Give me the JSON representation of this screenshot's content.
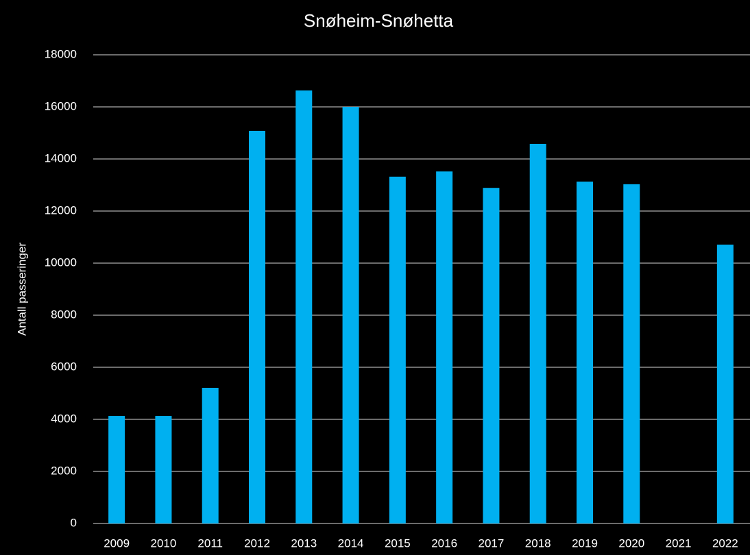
{
  "chart_data": {
    "type": "bar",
    "title": "Snøheim-Snøhetta",
    "y_label": "Antall passeringer",
    "categories": [
      "2009",
      "2010",
      "2011",
      "2012",
      "2013",
      "2014",
      "2015",
      "2016",
      "2017",
      "2018",
      "2019",
      "2020",
      "2021",
      "2022"
    ],
    "values": [
      4130,
      4130,
      5210,
      15080,
      16630,
      16000,
      13320,
      13520,
      12890,
      14580,
      13130,
      13030,
      null,
      10710
    ],
    "color": "#00b0f0",
    "ylim": [
      0,
      18000
    ],
    "yticks": [
      0,
      2000,
      4000,
      6000,
      8000,
      10000,
      12000,
      14000,
      16000,
      18000
    ],
    "grid": true
  }
}
